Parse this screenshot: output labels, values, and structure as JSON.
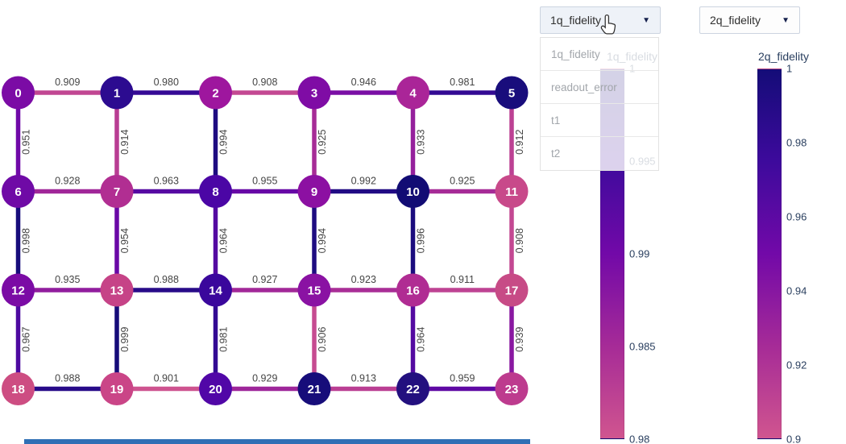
{
  "dropdowns": {
    "metric1": {
      "selected": "1q_fidelity",
      "open": true,
      "options": [
        "1q_fidelity",
        "readout_error",
        "t1",
        "t2"
      ]
    },
    "metric2": {
      "selected": "2q_fidelity"
    }
  },
  "icons": {
    "dropdown_arrow": "▼"
  },
  "colorbars": [
    {
      "title": "1q_fidelity",
      "ticks": [
        "1",
        "0.995",
        "0.99",
        "0.985",
        "0.98"
      ],
      "range": [
        0.98,
        1
      ]
    },
    {
      "title": "2q_fidelity",
      "ticks": [
        "1",
        "0.98",
        "0.96",
        "0.94",
        "0.92",
        "0.9"
      ],
      "range": [
        0.9,
        1
      ]
    }
  ],
  "colormap": {
    "stops": [
      "#d0558f",
      "#a62b97",
      "#7209a8",
      "#3d0a9c",
      "#140c78"
    ]
  },
  "graph": {
    "edge_value_range": [
      0.9,
      1
    ],
    "nodes": [
      {
        "id": "0",
        "color": "#7b0ba5"
      },
      {
        "id": "1",
        "color": "#2c0b90"
      },
      {
        "id": "2",
        "color": "#9e169e"
      },
      {
        "id": "3",
        "color": "#7f0ca5"
      },
      {
        "id": "4",
        "color": "#aa2598"
      },
      {
        "id": "5",
        "color": "#190d7c"
      },
      {
        "id": "6",
        "color": "#6f0aa6"
      },
      {
        "id": "7",
        "color": "#b12e92"
      },
      {
        "id": "8",
        "color": "#4b06a5"
      },
      {
        "id": "9",
        "color": "#8c10a2"
      },
      {
        "id": "10",
        "color": "#120c74"
      },
      {
        "id": "11",
        "color": "#c8498a"
      },
      {
        "id": "12",
        "color": "#7b0ba5"
      },
      {
        "id": "13",
        "color": "#c64387"
      },
      {
        "id": "14",
        "color": "#3a079c"
      },
      {
        "id": "15",
        "color": "#8a12a3"
      },
      {
        "id": "16",
        "color": "#b02c93"
      },
      {
        "id": "17",
        "color": "#c74b86"
      },
      {
        "id": "18",
        "color": "#cd4d82"
      },
      {
        "id": "19",
        "color": "#ca4587"
      },
      {
        "id": "20",
        "color": "#5107a7"
      },
      {
        "id": "21",
        "color": "#170d7a"
      },
      {
        "id": "22",
        "color": "#23107f"
      },
      {
        "id": "23",
        "color": "#bd3b8e"
      }
    ],
    "edges": [
      {
        "a": 0,
        "b": 1,
        "value": "0.909"
      },
      {
        "a": 1,
        "b": 2,
        "value": "0.980"
      },
      {
        "a": 2,
        "b": 3,
        "value": "0.908"
      },
      {
        "a": 3,
        "b": 4,
        "value": "0.946"
      },
      {
        "a": 4,
        "b": 5,
        "value": "0.981"
      },
      {
        "a": 6,
        "b": 7,
        "value": "0.928"
      },
      {
        "a": 7,
        "b": 8,
        "value": "0.963"
      },
      {
        "a": 8,
        "b": 9,
        "value": "0.955"
      },
      {
        "a": 9,
        "b": 10,
        "value": "0.992"
      },
      {
        "a": 10,
        "b": 11,
        "value": "0.925"
      },
      {
        "a": 12,
        "b": 13,
        "value": "0.935"
      },
      {
        "a": 13,
        "b": 14,
        "value": "0.988"
      },
      {
        "a": 14,
        "b": 15,
        "value": "0.927"
      },
      {
        "a": 15,
        "b": 16,
        "value": "0.923"
      },
      {
        "a": 16,
        "b": 17,
        "value": "0.911"
      },
      {
        "a": 18,
        "b": 19,
        "value": "0.988"
      },
      {
        "a": 19,
        "b": 20,
        "value": "0.901"
      },
      {
        "a": 20,
        "b": 21,
        "value": "0.929"
      },
      {
        "a": 21,
        "b": 22,
        "value": "0.913"
      },
      {
        "a": 22,
        "b": 23,
        "value": "0.959"
      },
      {
        "a": 0,
        "b": 6,
        "value": "0.951"
      },
      {
        "a": 1,
        "b": 7,
        "value": "0.914"
      },
      {
        "a": 2,
        "b": 8,
        "value": "0.994"
      },
      {
        "a": 3,
        "b": 9,
        "value": "0.925"
      },
      {
        "a": 4,
        "b": 10,
        "value": "0.933"
      },
      {
        "a": 5,
        "b": 11,
        "value": "0.912"
      },
      {
        "a": 6,
        "b": 12,
        "value": "0.998"
      },
      {
        "a": 7,
        "b": 13,
        "value": "0.954"
      },
      {
        "a": 8,
        "b": 14,
        "value": "0.964"
      },
      {
        "a": 9,
        "b": 15,
        "value": "0.994"
      },
      {
        "a": 10,
        "b": 16,
        "value": "0.996"
      },
      {
        "a": 11,
        "b": 17,
        "value": "0.908"
      },
      {
        "a": 12,
        "b": 18,
        "value": "0.967"
      },
      {
        "a": 13,
        "b": 19,
        "value": "0.999"
      },
      {
        "a": 14,
        "b": 20,
        "value": "0.981"
      },
      {
        "a": 15,
        "b": 21,
        "value": "0.906"
      },
      {
        "a": 16,
        "b": 22,
        "value": "0.964"
      },
      {
        "a": 17,
        "b": 23,
        "value": "0.939"
      }
    ]
  },
  "misc": {
    "bottom_bar_color": "#2f6fb5"
  }
}
